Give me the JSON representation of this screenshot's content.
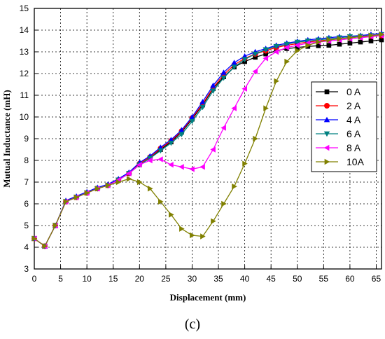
{
  "caption": "(c)",
  "chart_data": {
    "type": "line",
    "xlabel": "Displacement (mm)",
    "ylabel": "Mutual Inductance (mH)",
    "xlim": [
      0,
      66
    ],
    "ylim": [
      3,
      15
    ],
    "xticks": [
      0,
      5,
      10,
      15,
      20,
      25,
      30,
      35,
      40,
      45,
      50,
      55,
      60,
      65
    ],
    "yticks": [
      3,
      4,
      5,
      6,
      7,
      8,
      9,
      10,
      11,
      12,
      13,
      14,
      15
    ],
    "grid": true,
    "legend_position": "right",
    "x": [
      0,
      2,
      4,
      6,
      8,
      10,
      12,
      14,
      16,
      18,
      20,
      22,
      24,
      26,
      28,
      30,
      32,
      34,
      36,
      38,
      40,
      42,
      44,
      46,
      48,
      50,
      52,
      54,
      56,
      58,
      60,
      62,
      64,
      66
    ],
    "series": [
      {
        "name": "0 A",
        "color": "#000000",
        "marker": "square",
        "values": [
          4.4,
          4.05,
          5.0,
          6.1,
          6.3,
          6.5,
          6.7,
          6.85,
          7.1,
          7.4,
          7.8,
          8.1,
          8.5,
          8.85,
          9.3,
          9.9,
          10.55,
          11.3,
          11.85,
          12.3,
          12.55,
          12.75,
          12.9,
          13.05,
          13.15,
          13.2,
          13.25,
          13.28,
          13.3,
          13.35,
          13.4,
          13.45,
          13.5,
          13.55
        ]
      },
      {
        "name": "2 A",
        "color": "#ff0000",
        "marker": "circle",
        "values": [
          4.4,
          4.05,
          5.0,
          6.1,
          6.3,
          6.5,
          6.7,
          6.85,
          7.1,
          7.4,
          7.85,
          8.15,
          8.55,
          8.9,
          9.35,
          9.95,
          10.6,
          11.35,
          11.95,
          12.4,
          12.7,
          12.9,
          13.05,
          13.2,
          13.3,
          13.38,
          13.45,
          13.5,
          13.55,
          13.6,
          13.65,
          13.7,
          13.72,
          13.75
        ]
      },
      {
        "name": "4 A",
        "color": "#0000ff",
        "marker": "triangle-up",
        "values": [
          4.4,
          4.05,
          5.0,
          6.15,
          6.35,
          6.55,
          6.75,
          6.9,
          7.15,
          7.45,
          7.9,
          8.2,
          8.6,
          8.95,
          9.4,
          10.0,
          10.7,
          11.45,
          12.05,
          12.5,
          12.8,
          13.0,
          13.15,
          13.3,
          13.4,
          13.48,
          13.55,
          13.6,
          13.65,
          13.7,
          13.72,
          13.75,
          13.8,
          13.85
        ]
      },
      {
        "name": "6 A",
        "color": "#008080",
        "marker": "triangle-down",
        "values": [
          4.4,
          4.05,
          5.0,
          6.1,
          6.3,
          6.5,
          6.7,
          6.85,
          7.1,
          7.4,
          7.8,
          8.1,
          8.45,
          8.8,
          9.2,
          9.8,
          10.45,
          11.2,
          11.8,
          12.3,
          12.65,
          12.9,
          13.1,
          13.25,
          13.35,
          13.45,
          13.5,
          13.55,
          13.6,
          13.65,
          13.7,
          13.72,
          13.75,
          13.8
        ]
      },
      {
        "name": "8 A",
        "color": "#ff00ff",
        "marker": "triangle-left",
        "values": [
          4.4,
          4.05,
          5.0,
          6.1,
          6.3,
          6.5,
          6.7,
          6.85,
          7.1,
          7.4,
          7.8,
          8.0,
          8.05,
          7.8,
          7.7,
          7.6,
          7.7,
          8.5,
          9.5,
          10.4,
          11.3,
          12.1,
          12.7,
          13.0,
          13.2,
          13.3,
          13.4,
          13.45,
          13.5,
          13.55,
          13.6,
          13.65,
          13.7,
          13.75
        ]
      },
      {
        "name": "10A",
        "color": "#808000",
        "marker": "triangle-right",
        "values": [
          4.4,
          4.05,
          5.0,
          6.1,
          6.3,
          6.5,
          6.7,
          6.85,
          7.0,
          7.15,
          7.0,
          6.7,
          6.1,
          5.5,
          4.85,
          4.55,
          4.5,
          5.2,
          6.0,
          6.8,
          7.85,
          9.0,
          10.4,
          11.65,
          12.55,
          13.05,
          13.3,
          13.45,
          13.55,
          13.6,
          13.65,
          13.7,
          13.75,
          13.8
        ]
      }
    ]
  }
}
